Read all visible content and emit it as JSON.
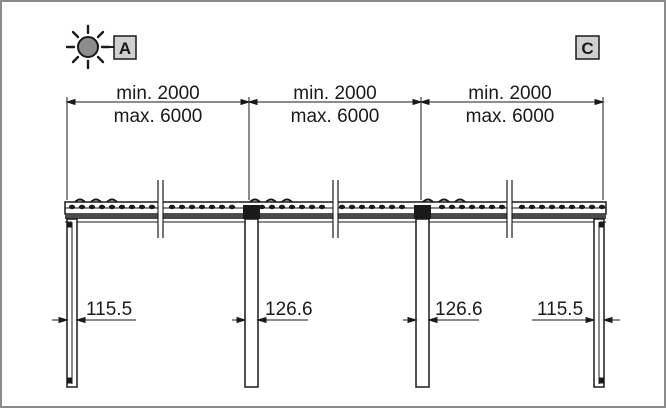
{
  "markers": {
    "left": "A",
    "right": "C"
  },
  "icons": {
    "sun": "sun-icon"
  },
  "spans": [
    {
      "min": "min. 2000",
      "max": "max. 6000"
    },
    {
      "min": "min. 2000",
      "max": "max. 6000"
    },
    {
      "min": "min. 2000",
      "max": "max. 6000"
    }
  ],
  "offsets": [
    "115.5",
    "126.6",
    "126.6",
    "115.5"
  ],
  "colors": {
    "frame": "#8a8a8a",
    "line": "#1a1a1a",
    "marker_fill": "#d0d0d0",
    "roof_fill": "#4a4a4a"
  }
}
